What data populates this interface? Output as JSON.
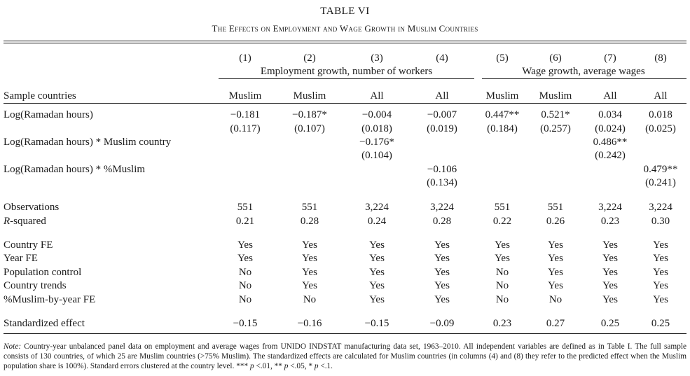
{
  "table": {
    "title": "TABLE VI",
    "subtitle": "The Effects on Employment and Wage Growth in Muslim Countries",
    "column_numbers": [
      "(1)",
      "(2)",
      "(3)",
      "(4)",
      "(5)",
      "(6)",
      "(7)",
      "(8)"
    ],
    "group_labels": [
      "Employment growth, number of workers",
      "Wage growth, average wages"
    ],
    "sample_label": "Sample countries",
    "sample_values": [
      "Muslim",
      "Muslim",
      "All",
      "All",
      "Muslim",
      "Muslim",
      "All",
      "All"
    ],
    "rows": {
      "log_ramadan": {
        "label": "Log(Ramadan hours)",
        "coef": [
          "−0.181",
          "−0.187*",
          "−0.004",
          "−0.007",
          "0.447**",
          "0.521*",
          "0.034",
          "0.018"
        ],
        "se": [
          "(0.117)",
          "(0.107)",
          "(0.018)",
          "(0.019)",
          "(0.184)",
          "(0.257)",
          "(0.024)",
          "(0.025)"
        ]
      },
      "interaction_muslim": {
        "label": "Log(Ramadan hours) * Muslim country",
        "coef3": "−0.176*",
        "se3": "(0.104)",
        "coef7": "0.486**",
        "se7": "(0.242)"
      },
      "interaction_pct": {
        "label": "Log(Ramadan hours) * %Muslim",
        "coef4": "−0.106",
        "se4": "(0.134)",
        "coef8": "0.479**",
        "se8": "(0.241)"
      },
      "observations": {
        "label": "Observations",
        "values": [
          "551",
          "551",
          "3,224",
          "3,224",
          "551",
          "551",
          "3,224",
          "3,224"
        ]
      },
      "rsquared": {
        "label_italic": "R",
        "label_rest": "-squared",
        "values": [
          "0.21",
          "0.28",
          "0.24",
          "0.28",
          "0.22",
          "0.26",
          "0.23",
          "0.30"
        ]
      },
      "country_fe": {
        "label": "Country FE",
        "values": [
          "Yes",
          "Yes",
          "Yes",
          "Yes",
          "Yes",
          "Yes",
          "Yes",
          "Yes"
        ]
      },
      "year_fe": {
        "label": "Year FE",
        "values": [
          "Yes",
          "Yes",
          "Yes",
          "Yes",
          "Yes",
          "Yes",
          "Yes",
          "Yes"
        ]
      },
      "population_control": {
        "label": "Population control",
        "values": [
          "No",
          "Yes",
          "Yes",
          "Yes",
          "No",
          "Yes",
          "Yes",
          "Yes"
        ]
      },
      "country_trends": {
        "label": "Country trends",
        "values": [
          "No",
          "Yes",
          "Yes",
          "Yes",
          "No",
          "Yes",
          "Yes",
          "Yes"
        ]
      },
      "muslim_year_fe": {
        "label": "%Muslim-by-year FE",
        "values": [
          "No",
          "No",
          "Yes",
          "Yes",
          "No",
          "No",
          "Yes",
          "Yes"
        ]
      },
      "standardized_effect": {
        "label": "Standardized effect",
        "values": [
          "−0.15",
          "−0.16",
          "−0.15",
          "−0.09",
          "0.23",
          "0.27",
          "0.25",
          "0.25"
        ]
      }
    },
    "note_label": "Note:",
    "note_text": " Country-year unbalanced panel data on employment and average wages from UNIDO INDSTAT manufacturing data set, 1963–2010. All independent variables are defined as in Table I. The full sample consists of 130 countries, of which 25 are Muslim countries (>75% Muslim). The standardized effects are calculated for Muslim countries (in columns (4) and (8) they refer to the predicted effect when the Muslim population share is 100%). Standard errors clustered at the country level. *** ",
    "note_p1": "p",
    "note_t1": " <.01, ** ",
    "note_p2": "p",
    "note_t2": " <.05, * ",
    "note_p3": "p",
    "note_t3": " <.1."
  }
}
